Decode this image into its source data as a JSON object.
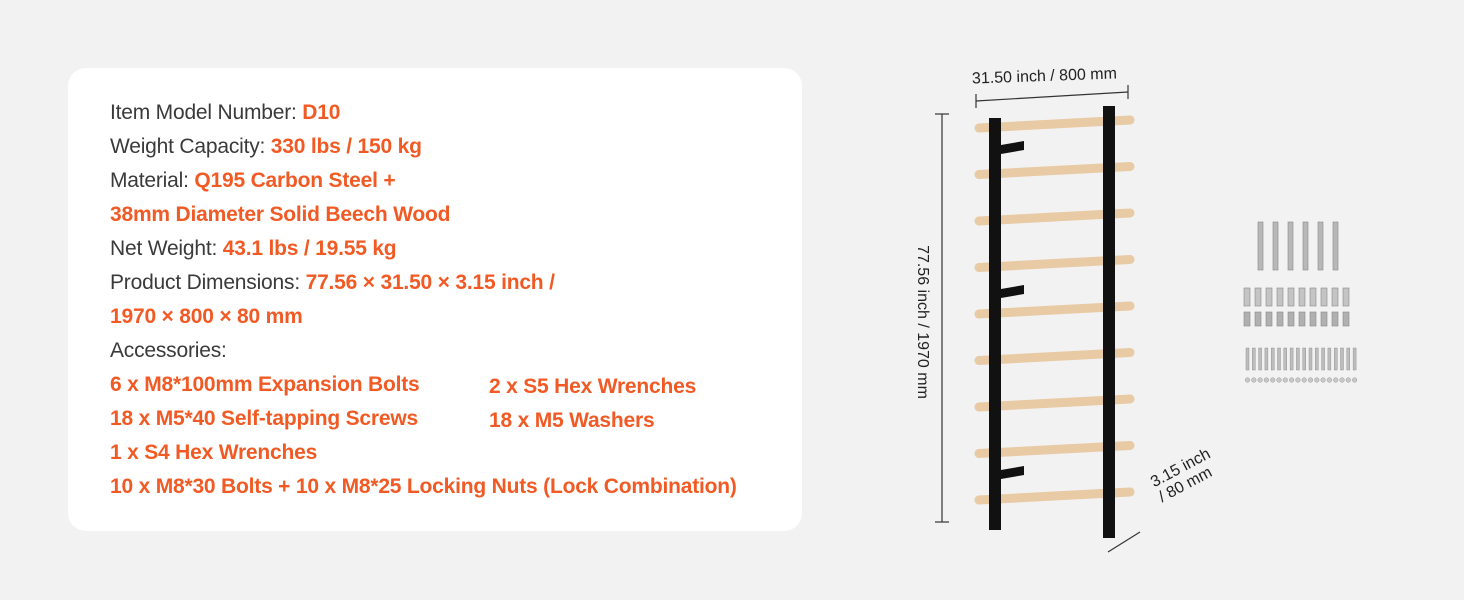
{
  "specs": {
    "model_label": "Item Model Number:",
    "model_value": "D10",
    "capacity_label": "Weight Capacity:",
    "capacity_value": "330 lbs / 150 kg",
    "material_label": "Material:",
    "material_value_1": "Q195 Carbon Steel +",
    "material_value_2": "38mm Diameter Solid Beech Wood",
    "net_weight_label": "Net Weight:",
    "net_weight_value": "43.1 lbs / 19.55 kg",
    "dimensions_label": "Product Dimensions:",
    "dimensions_value_1": "77.56 × 31.50 × 3.15 inch /",
    "dimensions_value_2": "1970 × 800 × 80 mm",
    "accessories_label": "Accessories:",
    "accessories": [
      "6 x M8*100mm Expansion Bolts",
      "18 x M5*40 Self-tapping Screws",
      "1 x S4 Hex Wrenches",
      "10 x M8*30 Bolts + 10 x M8*25 Locking Nuts (Lock Combination)",
      "2 x S5 Hex Wrenches",
      "18 x M5 Washers"
    ]
  },
  "dimensions": {
    "width": "31.50 inch / 800 mm",
    "height": "77.56 inch / 1970 mm",
    "depth_1": "3.15 inch",
    "depth_2": "/ 80 mm"
  },
  "colors": {
    "accent": "#f15a24",
    "text": "#3a3a3a",
    "frame": "#111111",
    "wood": "#e8caa4",
    "background": "#f2f2f2"
  }
}
